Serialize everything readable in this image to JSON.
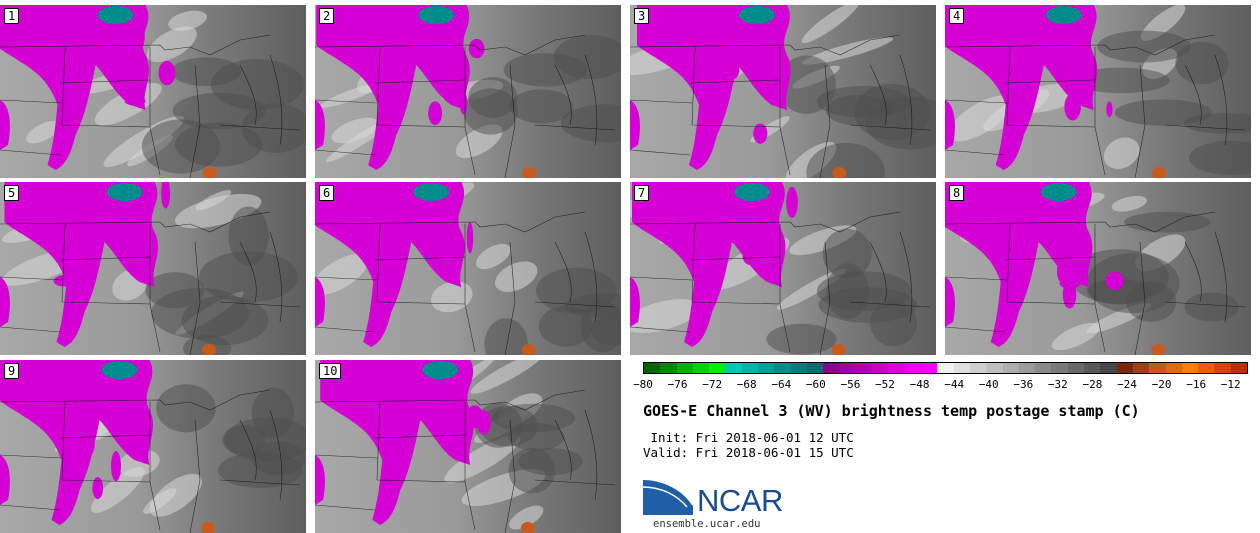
{
  "panels": [
    {
      "label": "1"
    },
    {
      "label": "2"
    },
    {
      "label": "3"
    },
    {
      "label": "4"
    },
    {
      "label": "5"
    },
    {
      "label": "6"
    },
    {
      "label": "7"
    },
    {
      "label": "8"
    },
    {
      "label": "9"
    },
    {
      "label": "10"
    }
  ],
  "colorbar": {
    "ticks": [
      "−80",
      "−76",
      "−72",
      "−68",
      "−64",
      "−60",
      "−56",
      "−52",
      "−48",
      "−44",
      "−40",
      "−36",
      "−32",
      "−28",
      "−24",
      "−20",
      "−16",
      "−12"
    ],
    "tick_values": [
      -80,
      -76,
      -72,
      -68,
      -64,
      -60,
      -56,
      -52,
      -48,
      -44,
      -40,
      -36,
      -32,
      -28,
      -24,
      -20,
      -16,
      -12
    ],
    "range": [
      -80,
      -10
    ],
    "colors": [
      "#006400",
      "#008a00",
      "#00b000",
      "#00d400",
      "#00f000",
      "#00c8b4",
      "#00b4aa",
      "#00a09a",
      "#008c8c",
      "#007a7a",
      "#006e6e",
      "#8b008b",
      "#a000a0",
      "#b400b4",
      "#c800c8",
      "#dc00dc",
      "#f000f0",
      "#ff00ff",
      "#f2f2f2",
      "#e0e0e0",
      "#cfcfcf",
      "#bebebe",
      "#adadad",
      "#9c9c9c",
      "#8b8b8b",
      "#7a7a7a",
      "#696969",
      "#585858",
      "#474747",
      "#7a2a0a",
      "#a0401a",
      "#c25a20",
      "#e06a10",
      "#ff7f00",
      "#f05a10",
      "#d84010",
      "#c02a00"
    ]
  },
  "title": "GOES-E Channel 3 (WV) brightness temp postage stamp (C)",
  "init": " Init: Fri 2018-06-01 12 UTC",
  "valid": "Valid: Fri 2018-06-01 15 UTC",
  "logo": {
    "text": "NCAR",
    "site": "ensemble.ucar.edu",
    "color": "#1a4b8c"
  }
}
